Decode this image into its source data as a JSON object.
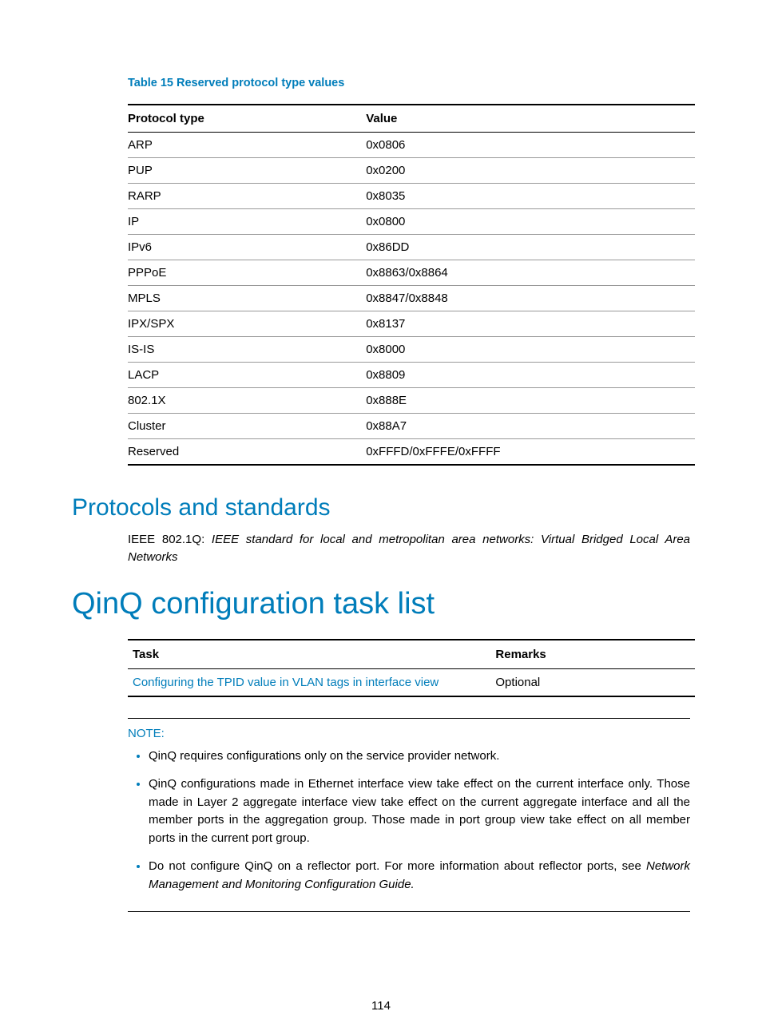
{
  "tableTitle": "Table 15 Reserved protocol type values",
  "protocolTable": {
    "headers": [
      "Protocol type",
      "Value"
    ],
    "rows": [
      [
        "ARP",
        "0x0806"
      ],
      [
        "PUP",
        "0x0200"
      ],
      [
        "RARP",
        "0x8035"
      ],
      [
        "IP",
        "0x0800"
      ],
      [
        "IPv6",
        "0x86DD"
      ],
      [
        "PPPoE",
        "0x8863/0x8864"
      ],
      [
        "MPLS",
        "0x8847/0x8848"
      ],
      [
        "IPX/SPX",
        "0x8137"
      ],
      [
        "IS-IS",
        "0x8000"
      ],
      [
        "LACP",
        "0x8809"
      ],
      [
        "802.1X",
        "0x888E"
      ],
      [
        "Cluster",
        "0x88A7"
      ],
      [
        "Reserved",
        "0xFFFD/0xFFFE/0xFFFF"
      ]
    ]
  },
  "section2": {
    "title": "Protocols and standards",
    "prefix": "IEEE 802.1Q: ",
    "italic": "IEEE standard for local and metropolitan area networks: Virtual Bridged Local Area Networks"
  },
  "section1": {
    "title": "QinQ configuration task list"
  },
  "taskTable": {
    "headers": [
      "Task",
      "Remarks"
    ],
    "row": {
      "task": "Configuring the TPID value in VLAN tags in interface view",
      "remarks": "Optional"
    }
  },
  "note": {
    "label": "NOTE:",
    "items": [
      "QinQ requires configurations only on the service provider network.",
      "QinQ configurations made in Ethernet interface view take effect on the current interface only. Those made in Layer 2 aggregate interface view take effect on the current aggregate interface and all the member ports in the aggregation group. Those made in port group view take effect on all member ports in the current port group."
    ],
    "lastPrefix": "Do not configure QinQ on a reflector port. For more information about reflector ports, see ",
    "lastItalic": "Network Management and Monitoring Configuration Guide.",
    "lastSuffix": ""
  },
  "pageNumber": "114",
  "colors": {
    "accent": "#007dba"
  }
}
